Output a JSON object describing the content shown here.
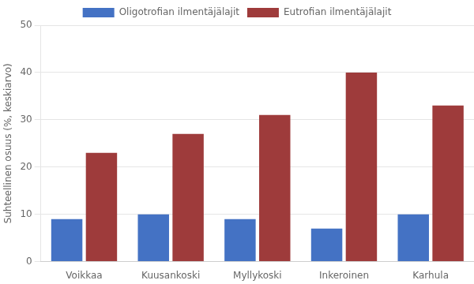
{
  "chart_data": {
    "type": "bar",
    "categories": [
      "Voikkaa",
      "Kuusankoski",
      "Myllykoski",
      "Inkeroinen",
      "Karhula"
    ],
    "series": [
      {
        "name": "Oligotrofian ilmentäjälajit",
        "color": "#4472C4",
        "values": [
          9,
          10,
          9,
          7,
          10
        ]
      },
      {
        "name": "Eutrofian ilmentäjälajit",
        "color": "#9E3B3B",
        "values": [
          23,
          27,
          31,
          40,
          33
        ]
      }
    ],
    "ylabel": "Suhteellinen osuus (%, keskiarvo)",
    "ylim": [
      0,
      50
    ],
    "yticks": [
      0,
      10,
      20,
      30,
      40,
      50
    ],
    "grid": true,
    "legend": "top"
  }
}
